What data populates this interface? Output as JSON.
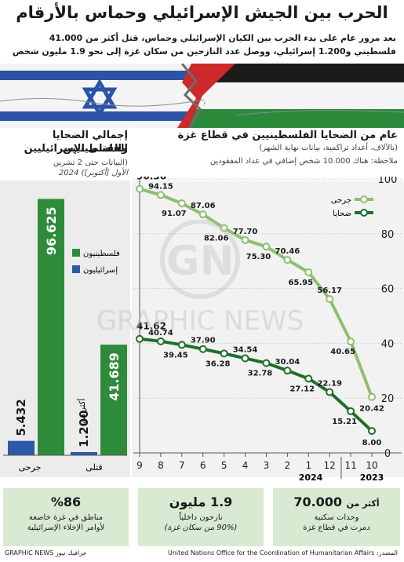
{
  "title": "الحرب بين الجيش الإسرائيلي وحماس بالأرقام",
  "intro": "بعد مرور عام على بدء الحرب بين الكيان الإسرائيلي وحماس، قتل أكثر من 41.000 فلسطيني و1.200 إسرائيلي، ووصل عدد النازحين من سكان غزة إلى نحو 1.9 مليون شخص",
  "left_panel": {
    "heading_line1": "إجمالي الضحايا الفلسطينيين",
    "heading_line2": "والقتلى الإسرائيليين",
    "note_line1": "(البيانات حتى 2 تشرين",
    "note_line2": "الأول [أكتوبر]) 2024",
    "legend": [
      {
        "label": "فلسطينيون",
        "color": "#2e8b3a"
      },
      {
        "label": "إسرائيليون",
        "color": "#2a5aa8"
      }
    ],
    "more_than": "أكثر من",
    "categories": [
      "جرحى",
      "قتلى"
    ]
  },
  "right_panel": {
    "heading": "عام من الضحايا الفلسطينيين في قطاع غزة",
    "sub1": "(بالآلاف، أعداد تراكمية، بيانات نهاية الشهر)",
    "sub2": "ملاحظة: هناك 10.000 شخص إضافي في عداد المفقودين",
    "legend_injured": "جرحى",
    "legend_dead": "ضحايا",
    "year_2024": "2024",
    "year_2023": "2023"
  },
  "chart_data": [
    {
      "type": "bar",
      "categories": [
        "قتلى",
        "جرحى"
      ],
      "series": [
        {
          "name": "فلسطينيون",
          "values": [
            41.689,
            96.625
          ],
          "color": "#2e8b3a"
        },
        {
          "name": "إسرائيليون",
          "values": [
            1.2,
            5.432
          ],
          "color": "#2a5aa8"
        }
      ],
      "labels": {
        "palestinian": [
          "41.689",
          "96.625"
        ],
        "israeli": [
          "1.200",
          "5.432"
        ]
      },
      "ylim": [
        0,
        100
      ]
    },
    {
      "type": "line",
      "x": [
        "10",
        "11",
        "12",
        "1",
        "2",
        "3",
        "4",
        "5",
        "6",
        "7",
        "8",
        "9"
      ],
      "x_order": "right-to-left",
      "years": {
        "2023": [
          "10",
          "11",
          "12"
        ],
        "2024": [
          "1",
          "2",
          "3",
          "4",
          "5",
          "6",
          "7",
          "8",
          "9"
        ]
      },
      "y_ticks": [
        0,
        20,
        40,
        60,
        80,
        100
      ],
      "ylim": [
        0,
        100
      ],
      "series": [
        {
          "name": "جرحى",
          "color": "#8fbf6f",
          "values": [
            20.42,
            40.65,
            56.17,
            65.95,
            70.46,
            75.3,
            77.7,
            82.06,
            87.06,
            91.07,
            94.15,
            96.36
          ],
          "labels": [
            "20.42",
            "40.65",
            "56.17",
            "65.95",
            "70.46",
            "75.30",
            "77.70",
            "82.06",
            "87.06",
            "91.07",
            "94.15",
            "96.36"
          ]
        },
        {
          "name": "ضحايا",
          "color": "#1f6e2c",
          "values": [
            8.0,
            15.21,
            22.19,
            27.12,
            30.04,
            32.78,
            34.54,
            36.28,
            37.9,
            39.45,
            40.74,
            41.62
          ],
          "labels": [
            "8.00",
            "15.21",
            "22.19",
            "27.12",
            "30.04",
            "32.78",
            "34.54",
            "36.28",
            "37.90",
            "39.45",
            "40.74",
            "41.62"
          ]
        }
      ]
    }
  ],
  "stats": [
    {
      "big": "%86",
      "line1": "مناطق في غزة خاضعة",
      "line2": "لأوامر الإخلاء الإسرائيلية"
    },
    {
      "big": "1.9 مليون",
      "line1": "نازحون داخلياً",
      "line2": "(90% من سكان غزة)"
    },
    {
      "big_prefix": "أكثر من",
      "big": "70.000",
      "line1": "وحدات سكنية",
      "line2": "دمرت في قطاع غزة"
    }
  ],
  "source": "المصدر: United Nations Office for the Coordination of Humanitarian Affairs",
  "credit": "GRAPHIC NEWS جرافيك نيوز",
  "watermark": "GRAPHIC NEWS",
  "watermark_logo": "GN",
  "colors": {
    "palestinian": "#2e8b3a",
    "israeli": "#2a5aa8",
    "injured": "#8fbf6f",
    "dead": "#1f6e2c",
    "stat_bg": "#d9ead3"
  }
}
